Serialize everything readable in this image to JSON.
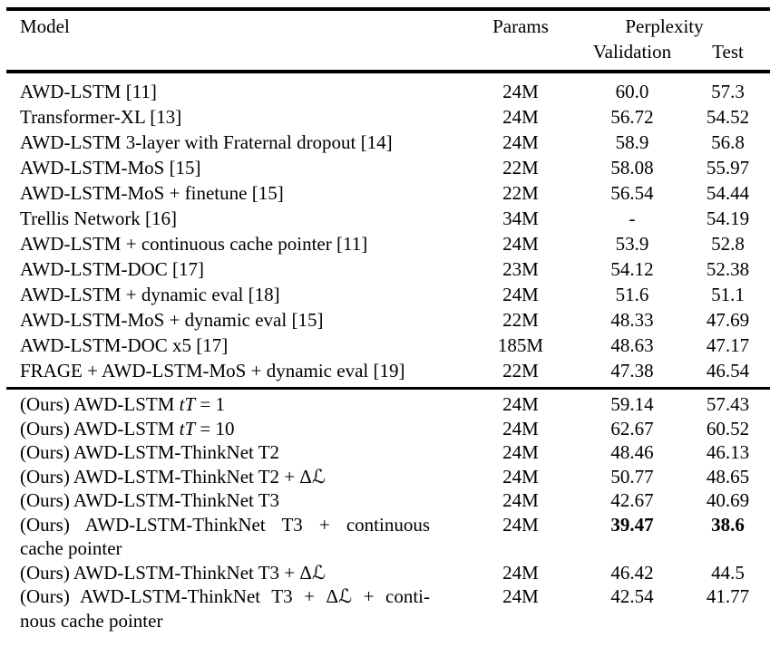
{
  "colors": {
    "background": "#ffffff",
    "text": "#000000",
    "rule": "#000000"
  },
  "table": {
    "header": {
      "model": "Model",
      "params": "Params",
      "perplexity": "Perplexity",
      "validation": "Validation",
      "test": "Test"
    },
    "sections": [
      {
        "name": "published-results",
        "rows": [
          {
            "model": [
              [
                "AWD-LSTM [11]"
              ]
            ],
            "params": "24M",
            "validation": "60.0",
            "test": "57.3"
          },
          {
            "model": [
              [
                "Transformer-XL [13]"
              ]
            ],
            "params": "24M",
            "validation": "56.72",
            "test": "54.52"
          },
          {
            "model": [
              [
                "AWD-LSTM 3-layer with Fraternal dropout [14]"
              ]
            ],
            "params": "24M",
            "validation": "58.9",
            "test": "56.8"
          },
          {
            "model": [
              [
                "AWD-LSTM-MoS [15]"
              ]
            ],
            "params": "22M",
            "validation": "58.08",
            "test": "55.97"
          },
          {
            "model": [
              [
                "AWD-LSTM-MoS + finetune [15]"
              ]
            ],
            "params": "22M",
            "validation": "56.54",
            "test": "54.44"
          },
          {
            "model": [
              [
                "Trellis Network [16]"
              ]
            ],
            "params": "34M",
            "validation": "-",
            "test": "54.19"
          },
          {
            "model": [
              [
                "AWD-LSTM + continuous cache pointer [11]"
              ]
            ],
            "params": "24M",
            "validation": "53.9",
            "test": "52.8"
          },
          {
            "model": [
              [
                "AWD-LSTM-DOC [17]"
              ]
            ],
            "params": "23M",
            "validation": "54.12",
            "test": "52.38"
          },
          {
            "model": [
              [
                "AWD-LSTM + dynamic eval [18]"
              ]
            ],
            "params": "24M",
            "validation": "51.6",
            "test": "51.1"
          },
          {
            "model": [
              [
                "AWD-LSTM-MoS + dynamic eval [15]"
              ]
            ],
            "params": "22M",
            "validation": "48.33",
            "test": "47.69"
          },
          {
            "model": [
              [
                "AWD-LSTM-DOC x5 [17]"
              ]
            ],
            "params": "185M",
            "validation": "48.63",
            "test": "47.17"
          },
          {
            "model": [
              [
                "FRAGE + AWD-LSTM-MoS + dynamic eval [19]"
              ]
            ],
            "params": "22M",
            "validation": "47.38",
            "test": "46.54"
          }
        ]
      },
      {
        "name": "our-results",
        "rows": [
          {
            "model": [
              [
                "(Ours) AWD-LSTM ",
                {
                  "text": "tT",
                  "italic": true
                },
                " = 1"
              ]
            ],
            "params": "24M",
            "validation": "59.14",
            "test": "57.43"
          },
          {
            "model": [
              [
                "(Ours) AWD-LSTM ",
                {
                  "text": "tT",
                  "italic": true
                },
                " = 10"
              ]
            ],
            "params": "24M",
            "validation": "62.67",
            "test": "60.52"
          },
          {
            "model": [
              [
                "(Ours) AWD-LSTM-ThinkNet T2"
              ]
            ],
            "params": "24M",
            "validation": "48.46",
            "test": "46.13"
          },
          {
            "model": [
              [
                "(Ours) AWD-LSTM-ThinkNet T2 + Δℒ"
              ]
            ],
            "params": "24M",
            "validation": "50.77",
            "test": "48.65"
          },
          {
            "model": [
              [
                "(Ours) AWD-LSTM-ThinkNet T3"
              ]
            ],
            "params": "24M",
            "validation": "42.67",
            "test": "40.69"
          },
          {
            "model": [
              [
                "(Ours) AWD-LSTM-ThinkNet T3 + continuous"
              ],
              [
                "cache pointer"
              ]
            ],
            "justify": true,
            "params": "24M",
            "validation": "39.47",
            "test": "38.6",
            "bold_values": true
          },
          {
            "model": [
              [
                "(Ours) AWD-LSTM-ThinkNet T3 + Δℒ"
              ]
            ],
            "params": "24M",
            "validation": "46.42",
            "test": "44.5"
          },
          {
            "model": [
              [
                "(Ours) AWD-LSTM-ThinkNet T3 + Δℒ + conti-"
              ],
              [
                "nous cache pointer"
              ]
            ],
            "justify": true,
            "params": "24M",
            "validation": "42.54",
            "test": "41.77"
          }
        ]
      }
    ]
  }
}
